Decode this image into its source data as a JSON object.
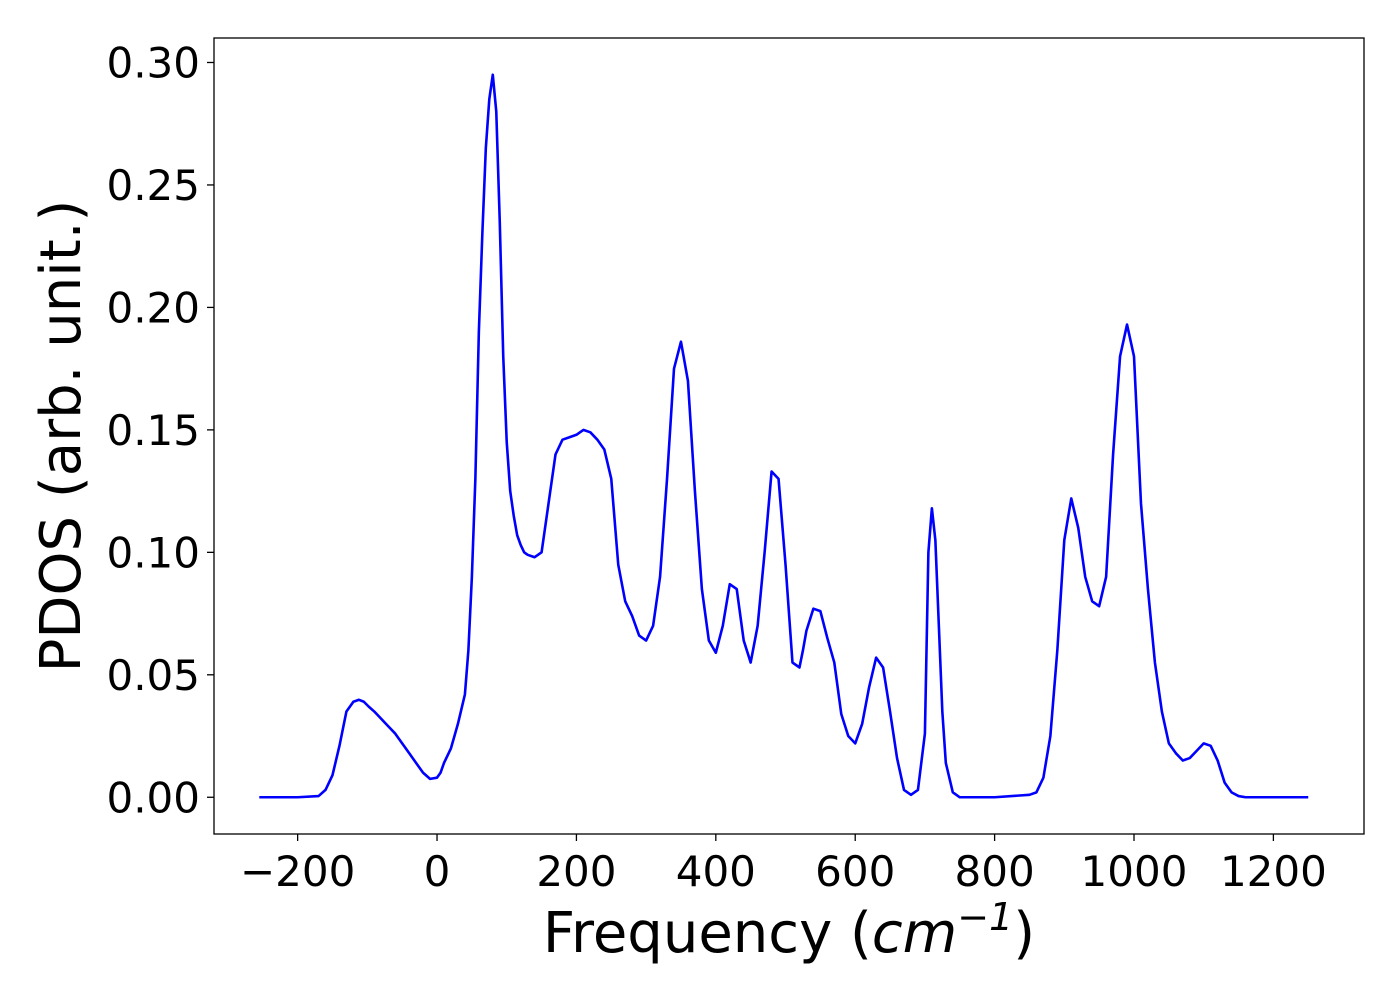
{
  "chart_data": {
    "type": "line",
    "title": "",
    "xlabel_main": "Frequency (",
    "xlabel_unit": "cm",
    "xlabel_exponent": "−1",
    "xlabel_close": ")",
    "ylabel": "PDOS (arb. unit.)",
    "xlim": [
      -320,
      1330
    ],
    "ylim": [
      -0.015,
      0.31
    ],
    "x_ticks": [
      -200,
      0,
      200,
      400,
      600,
      800,
      1000,
      1200
    ],
    "x_tick_labels": [
      "−200",
      "0",
      "200",
      "400",
      "600",
      "800",
      "1000",
      "1200"
    ],
    "y_ticks": [
      0.0,
      0.05,
      0.1,
      0.15,
      0.2,
      0.25,
      0.3
    ],
    "y_tick_labels": [
      "0.00",
      "0.05",
      "0.10",
      "0.15",
      "0.20",
      "0.25",
      "0.30"
    ],
    "grid": false,
    "series": [
      {
        "color": "#0000ff",
        "x": [
          -255,
          -200,
          -170,
          -160,
          -150,
          -140,
          -130,
          -120,
          -112,
          -105,
          -98,
          -90,
          -80,
          -70,
          -60,
          -50,
          -40,
          -30,
          -20,
          -10,
          0,
          5,
          10,
          20,
          30,
          40,
          45,
          50,
          55,
          60,
          65,
          70,
          75,
          80,
          85,
          90,
          95,
          100,
          105,
          110,
          115,
          120,
          125,
          130,
          140,
          150,
          160,
          170,
          180,
          190,
          200,
          210,
          220,
          230,
          240,
          250,
          260,
          270,
          280,
          290,
          300,
          310,
          320,
          330,
          340,
          350,
          360,
          370,
          380,
          390,
          400,
          410,
          420,
          430,
          440,
          450,
          460,
          470,
          480,
          490,
          500,
          505,
          510,
          515,
          520,
          525,
          530,
          540,
          550,
          560,
          570,
          580,
          590,
          600,
          610,
          620,
          630,
          640,
          650,
          660,
          670,
          680,
          690,
          700,
          705,
          710,
          715,
          720,
          725,
          730,
          740,
          750,
          760,
          800,
          850,
          860,
          870,
          880,
          890,
          900,
          910,
          920,
          930,
          940,
          950,
          960,
          970,
          980,
          990,
          1000,
          1010,
          1020,
          1030,
          1040,
          1050,
          1060,
          1070,
          1080,
          1090,
          1100,
          1110,
          1120,
          1130,
          1140,
          1150,
          1160,
          1250
        ],
        "y": [
          0.0,
          0.0,
          0.0005,
          0.003,
          0.009,
          0.021,
          0.035,
          0.039,
          0.0398,
          0.039,
          0.037,
          0.035,
          0.032,
          0.029,
          0.026,
          0.022,
          0.018,
          0.014,
          0.01,
          0.0075,
          0.008,
          0.01,
          0.014,
          0.02,
          0.03,
          0.042,
          0.06,
          0.09,
          0.13,
          0.19,
          0.23,
          0.265,
          0.285,
          0.295,
          0.28,
          0.235,
          0.18,
          0.145,
          0.125,
          0.115,
          0.107,
          0.103,
          0.1,
          0.099,
          0.098,
          0.1,
          0.12,
          0.14,
          0.146,
          0.147,
          0.148,
          0.15,
          0.149,
          0.146,
          0.142,
          0.13,
          0.095,
          0.08,
          0.074,
          0.066,
          0.064,
          0.07,
          0.09,
          0.13,
          0.175,
          0.186,
          0.17,
          0.125,
          0.085,
          0.064,
          0.059,
          0.07,
          0.087,
          0.085,
          0.064,
          0.055,
          0.07,
          0.1,
          0.133,
          0.13,
          0.095,
          0.075,
          0.055,
          0.054,
          0.053,
          0.06,
          0.068,
          0.077,
          0.076,
          0.065,
          0.055,
          0.034,
          0.025,
          0.022,
          0.03,
          0.045,
          0.057,
          0.053,
          0.035,
          0.016,
          0.003,
          0.001,
          0.003,
          0.026,
          0.1,
          0.118,
          0.105,
          0.07,
          0.035,
          0.014,
          0.002,
          0.0,
          0.0,
          0.0,
          0.001,
          0.002,
          0.008,
          0.025,
          0.06,
          0.105,
          0.122,
          0.11,
          0.09,
          0.08,
          0.078,
          0.09,
          0.14,
          0.18,
          0.193,
          0.18,
          0.12,
          0.085,
          0.055,
          0.035,
          0.022,
          0.018,
          0.015,
          0.016,
          0.019,
          0.022,
          0.021,
          0.015,
          0.006,
          0.002,
          0.0005,
          0.0,
          0.0
        ]
      }
    ]
  }
}
